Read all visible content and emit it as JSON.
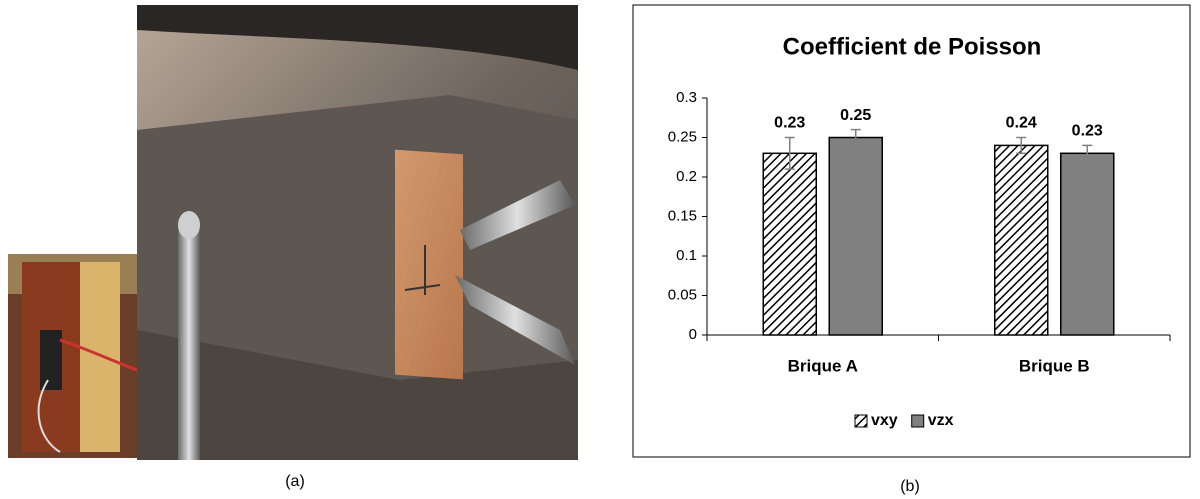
{
  "captions": [
    "(a)",
    "(b)"
  ],
  "chart_data": {
    "type": "bar",
    "title": "Coefficient de Poisson",
    "categories": [
      "Brique A",
      "Brique B"
    ],
    "series": [
      {
        "name": "vxy",
        "color": "#000000",
        "pattern": "hatch",
        "values": [
          0.23,
          0.24
        ],
        "errors": [
          0.02,
          0.01
        ]
      },
      {
        "name": "vzx",
        "color": "#808080",
        "values": [
          0.25,
          0.23
        ],
        "errors": [
          0.01,
          0.01
        ]
      }
    ],
    "ylim": [
      0,
      0.3
    ],
    "yticks": [
      0,
      0.05,
      0.1,
      0.15,
      0.2,
      0.25,
      0.3
    ],
    "grid": false,
    "legend": "bottom"
  }
}
